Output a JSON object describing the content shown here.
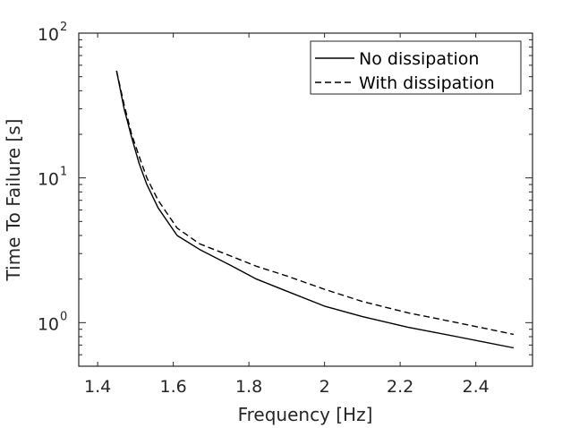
{
  "chart_data": {
    "type": "line",
    "xlabel": "Frequency [Hz]",
    "ylabel": "Time To Failure [s]",
    "xlim": [
      1.35,
      2.55
    ],
    "ylim": [
      0.5,
      100
    ],
    "yscale": "log",
    "grid": false,
    "legend_position": "top-right",
    "x_ticks": [
      {
        "value": 1.4,
        "label": "1.4"
      },
      {
        "value": 1.6,
        "label": "1.6"
      },
      {
        "value": 1.8,
        "label": "1.8"
      },
      {
        "value": 2.0,
        "label": "2"
      },
      {
        "value": 2.2,
        "label": "2.2"
      },
      {
        "value": 2.4,
        "label": "2.4"
      }
    ],
    "y_ticks": [
      {
        "value": 1,
        "base": "10",
        "exp": "0"
      },
      {
        "value": 10,
        "base": "10",
        "exp": "1"
      },
      {
        "value": 100,
        "base": "10",
        "exp": "2"
      }
    ],
    "series": [
      {
        "name": "No dissipation",
        "style": "solid",
        "color": "#000000",
        "x": [
          1.45,
          1.47,
          1.49,
          1.51,
          1.53,
          1.56,
          1.61,
          1.67,
          1.75,
          1.82,
          1.9,
          2.0,
          2.1,
          2.22,
          2.35,
          2.5
        ],
        "y": [
          55,
          30,
          19,
          12.5,
          9,
          6.2,
          4.0,
          3.2,
          2.5,
          2.0,
          1.65,
          1.3,
          1.1,
          0.93,
          0.8,
          0.67
        ]
      },
      {
        "name": "With dissipation",
        "style": "dashed",
        "color": "#000000",
        "x": [
          1.45,
          1.47,
          1.49,
          1.51,
          1.53,
          1.56,
          1.61,
          1.67,
          1.75,
          1.82,
          1.9,
          2.0,
          2.1,
          2.22,
          2.35,
          2.5
        ],
        "y": [
          55,
          32,
          20,
          14,
          10,
          7.0,
          4.5,
          3.5,
          2.9,
          2.45,
          2.1,
          1.7,
          1.4,
          1.17,
          1.0,
          0.83
        ]
      }
    ]
  }
}
